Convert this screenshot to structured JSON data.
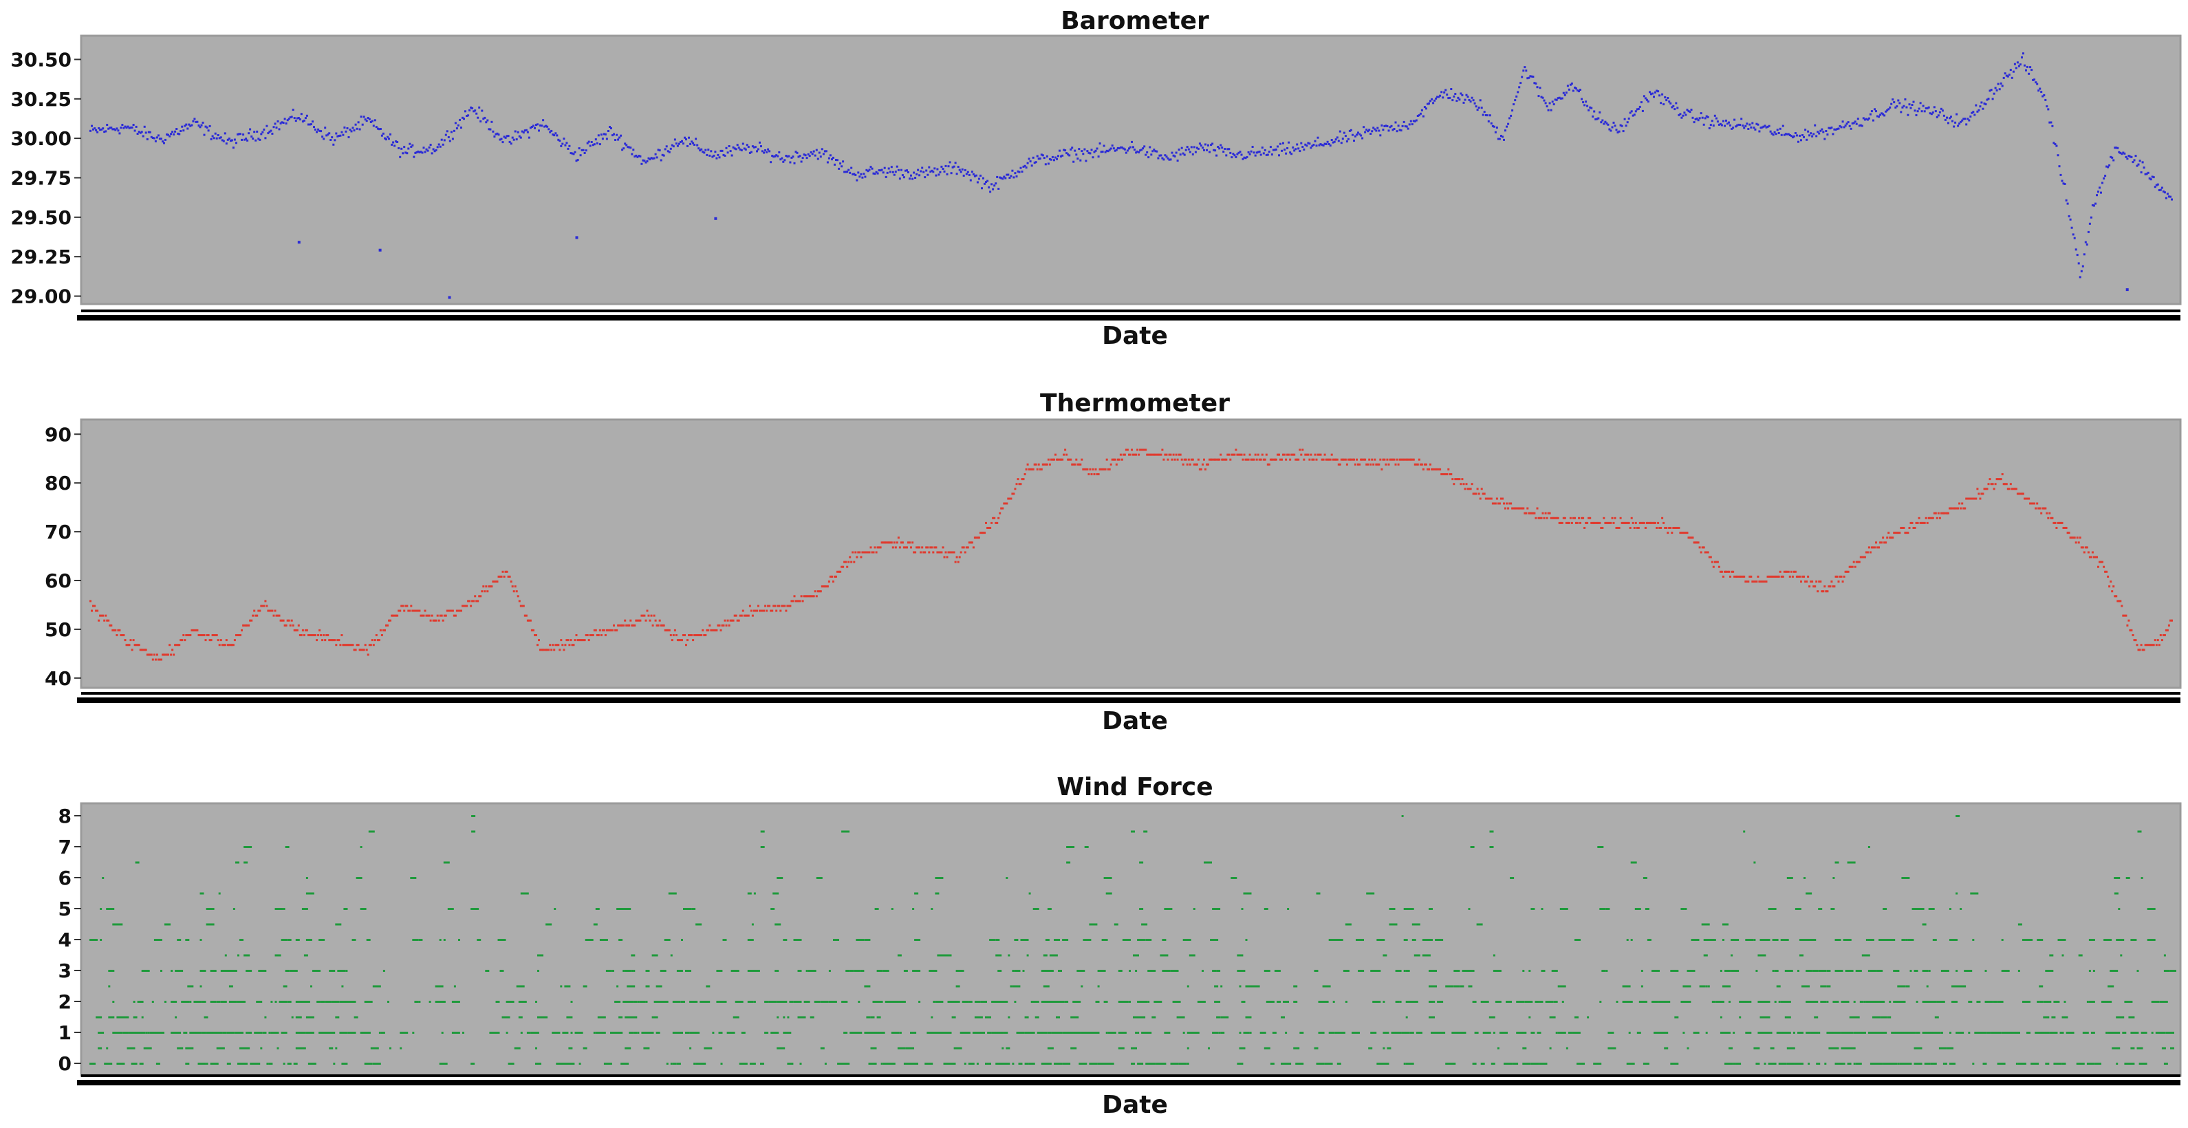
{
  "chart_data": [
    {
      "type": "scatter",
      "title": "Barometer",
      "xlabel": "Date",
      "ylabel": "",
      "ylim": [
        28.95,
        30.65
      ],
      "yticks": [
        "30.50",
        "30.25",
        "30.00",
        "29.75",
        "29.50",
        "29.25",
        "29.00"
      ],
      "color": "#2b2bd6",
      "plot_background": "#adadad",
      "grid": false,
      "legend": "none",
      "trend": [
        [
          0,
          30.05
        ],
        [
          3,
          30.08
        ],
        [
          6,
          30.0
        ],
        [
          9,
          30.1
        ],
        [
          12,
          29.98
        ],
        [
          15,
          30.05
        ],
        [
          18,
          30.15
        ],
        [
          21,
          30.0
        ],
        [
          24,
          30.12
        ],
        [
          27,
          29.92
        ],
        [
          30,
          29.95
        ],
        [
          33,
          30.2
        ],
        [
          36,
          29.98
        ],
        [
          39,
          30.1
        ],
        [
          42,
          29.9
        ],
        [
          45,
          30.05
        ],
        [
          48,
          29.85
        ],
        [
          51,
          30.0
        ],
        [
          54,
          29.9
        ],
        [
          57,
          29.95
        ],
        [
          60,
          29.88
        ],
        [
          63,
          29.92
        ],
        [
          66,
          29.78
        ],
        [
          69,
          29.8
        ],
        [
          72,
          29.78
        ],
        [
          75,
          29.82
        ],
        [
          78,
          29.7
        ],
        [
          81,
          29.85
        ],
        [
          84,
          29.9
        ],
        [
          87,
          29.92
        ],
        [
          90,
          29.95
        ],
        [
          93,
          29.88
        ],
        [
          96,
          29.95
        ],
        [
          99,
          29.9
        ],
        [
          102,
          29.92
        ],
        [
          105,
          29.95
        ],
        [
          108,
          30.0
        ],
        [
          111,
          30.05
        ],
        [
          114,
          30.1
        ],
        [
          117,
          30.3
        ],
        [
          120,
          30.22
        ],
        [
          122,
          30.0
        ],
        [
          124,
          30.45
        ],
        [
          126,
          30.2
        ],
        [
          128,
          30.35
        ],
        [
          130,
          30.15
        ],
        [
          132,
          30.05
        ],
        [
          135,
          30.3
        ],
        [
          138,
          30.15
        ],
        [
          141,
          30.1
        ],
        [
          144,
          30.08
        ],
        [
          147,
          30.02
        ],
        [
          150,
          30.05
        ],
        [
          153,
          30.12
        ],
        [
          156,
          30.22
        ],
        [
          159,
          30.18
        ],
        [
          162,
          30.1
        ],
        [
          165,
          30.35
        ],
        [
          167,
          30.5
        ],
        [
          169,
          30.25
        ],
        [
          171,
          29.55
        ],
        [
          172,
          29.15
        ],
        [
          173,
          29.55
        ],
        [
          175,
          29.95
        ],
        [
          177,
          29.85
        ],
        [
          180,
          29.6
        ]
      ],
      "outliers": [
        [
          31,
          29.0
        ],
        [
          25,
          29.3
        ],
        [
          18,
          29.35
        ],
        [
          42,
          29.38
        ],
        [
          54,
          29.5
        ],
        [
          176,
          29.05
        ]
      ]
    },
    {
      "type": "scatter",
      "title": "Thermometer",
      "xlabel": "Date",
      "ylabel": "",
      "ylim": [
        38,
        93
      ],
      "yticks": [
        "90",
        "80",
        "70",
        "60",
        "50",
        "40"
      ],
      "color": "#e03a2e",
      "plot_background": "#adadad",
      "grid": false,
      "legend": "none",
      "trend": [
        [
          0,
          55
        ],
        [
          3,
          48
        ],
        [
          6,
          44
        ],
        [
          9,
          50
        ],
        [
          12,
          47
        ],
        [
          15,
          55
        ],
        [
          18,
          50
        ],
        [
          21,
          48
        ],
        [
          24,
          46
        ],
        [
          27,
          55
        ],
        [
          30,
          52
        ],
        [
          33,
          56
        ],
        [
          36,
          62
        ],
        [
          39,
          46
        ],
        [
          42,
          48
        ],
        [
          45,
          50
        ],
        [
          48,
          53
        ],
        [
          51,
          48
        ],
        [
          54,
          50
        ],
        [
          57,
          54
        ],
        [
          60,
          55
        ],
        [
          63,
          58
        ],
        [
          66,
          65
        ],
        [
          69,
          68
        ],
        [
          72,
          67
        ],
        [
          75,
          65
        ],
        [
          78,
          72
        ],
        [
          81,
          83
        ],
        [
          84,
          86
        ],
        [
          87,
          82
        ],
        [
          90,
          87
        ],
        [
          93,
          86
        ],
        [
          96,
          84
        ],
        [
          99,
          86
        ],
        [
          102,
          85
        ],
        [
          105,
          86
        ],
        [
          108,
          85
        ],
        [
          111,
          84
        ],
        [
          114,
          85
        ],
        [
          117,
          82
        ],
        [
          120,
          78
        ],
        [
          123,
          75
        ],
        [
          126,
          73
        ],
        [
          129,
          72
        ],
        [
          132,
          72
        ],
        [
          135,
          72
        ],
        [
          138,
          70
        ],
        [
          141,
          62
        ],
        [
          144,
          60
        ],
        [
          147,
          62
        ],
        [
          150,
          58
        ],
        [
          153,
          65
        ],
        [
          156,
          70
        ],
        [
          159,
          73
        ],
        [
          162,
          76
        ],
        [
          165,
          81
        ],
        [
          168,
          76
        ],
        [
          171,
          70
        ],
        [
          174,
          63
        ],
        [
          176,
          52
        ],
        [
          177,
          46
        ],
        [
          179,
          48
        ],
        [
          180,
          53
        ]
      ],
      "outliers": []
    },
    {
      "type": "scatter",
      "title": "Wind Force",
      "xlabel": "Date",
      "ylabel": "",
      "ylim": [
        -0.4,
        8.4
      ],
      "yticks": [
        "8",
        "7",
        "6",
        "5",
        "4",
        "3",
        "2",
        "1",
        "0"
      ],
      "color": "#1f9a3c",
      "plot_background": "#adadad",
      "grid": false,
      "legend": "none",
      "levels": [
        0,
        0.5,
        1,
        1.5,
        2,
        2.5,
        3,
        3.5,
        4,
        4.5,
        5,
        5.5,
        6,
        6.5,
        7,
        7.5,
        8
      ],
      "gusts": [
        [
          33,
          8
        ],
        [
          33,
          7.5
        ],
        [
          58,
          7.5
        ],
        [
          58,
          7
        ],
        [
          86,
          7
        ],
        [
          121,
          7.5
        ],
        [
          121,
          7
        ],
        [
          177,
          7.5
        ],
        [
          176,
          6
        ],
        [
          175,
          5.5
        ]
      ]
    }
  ]
}
